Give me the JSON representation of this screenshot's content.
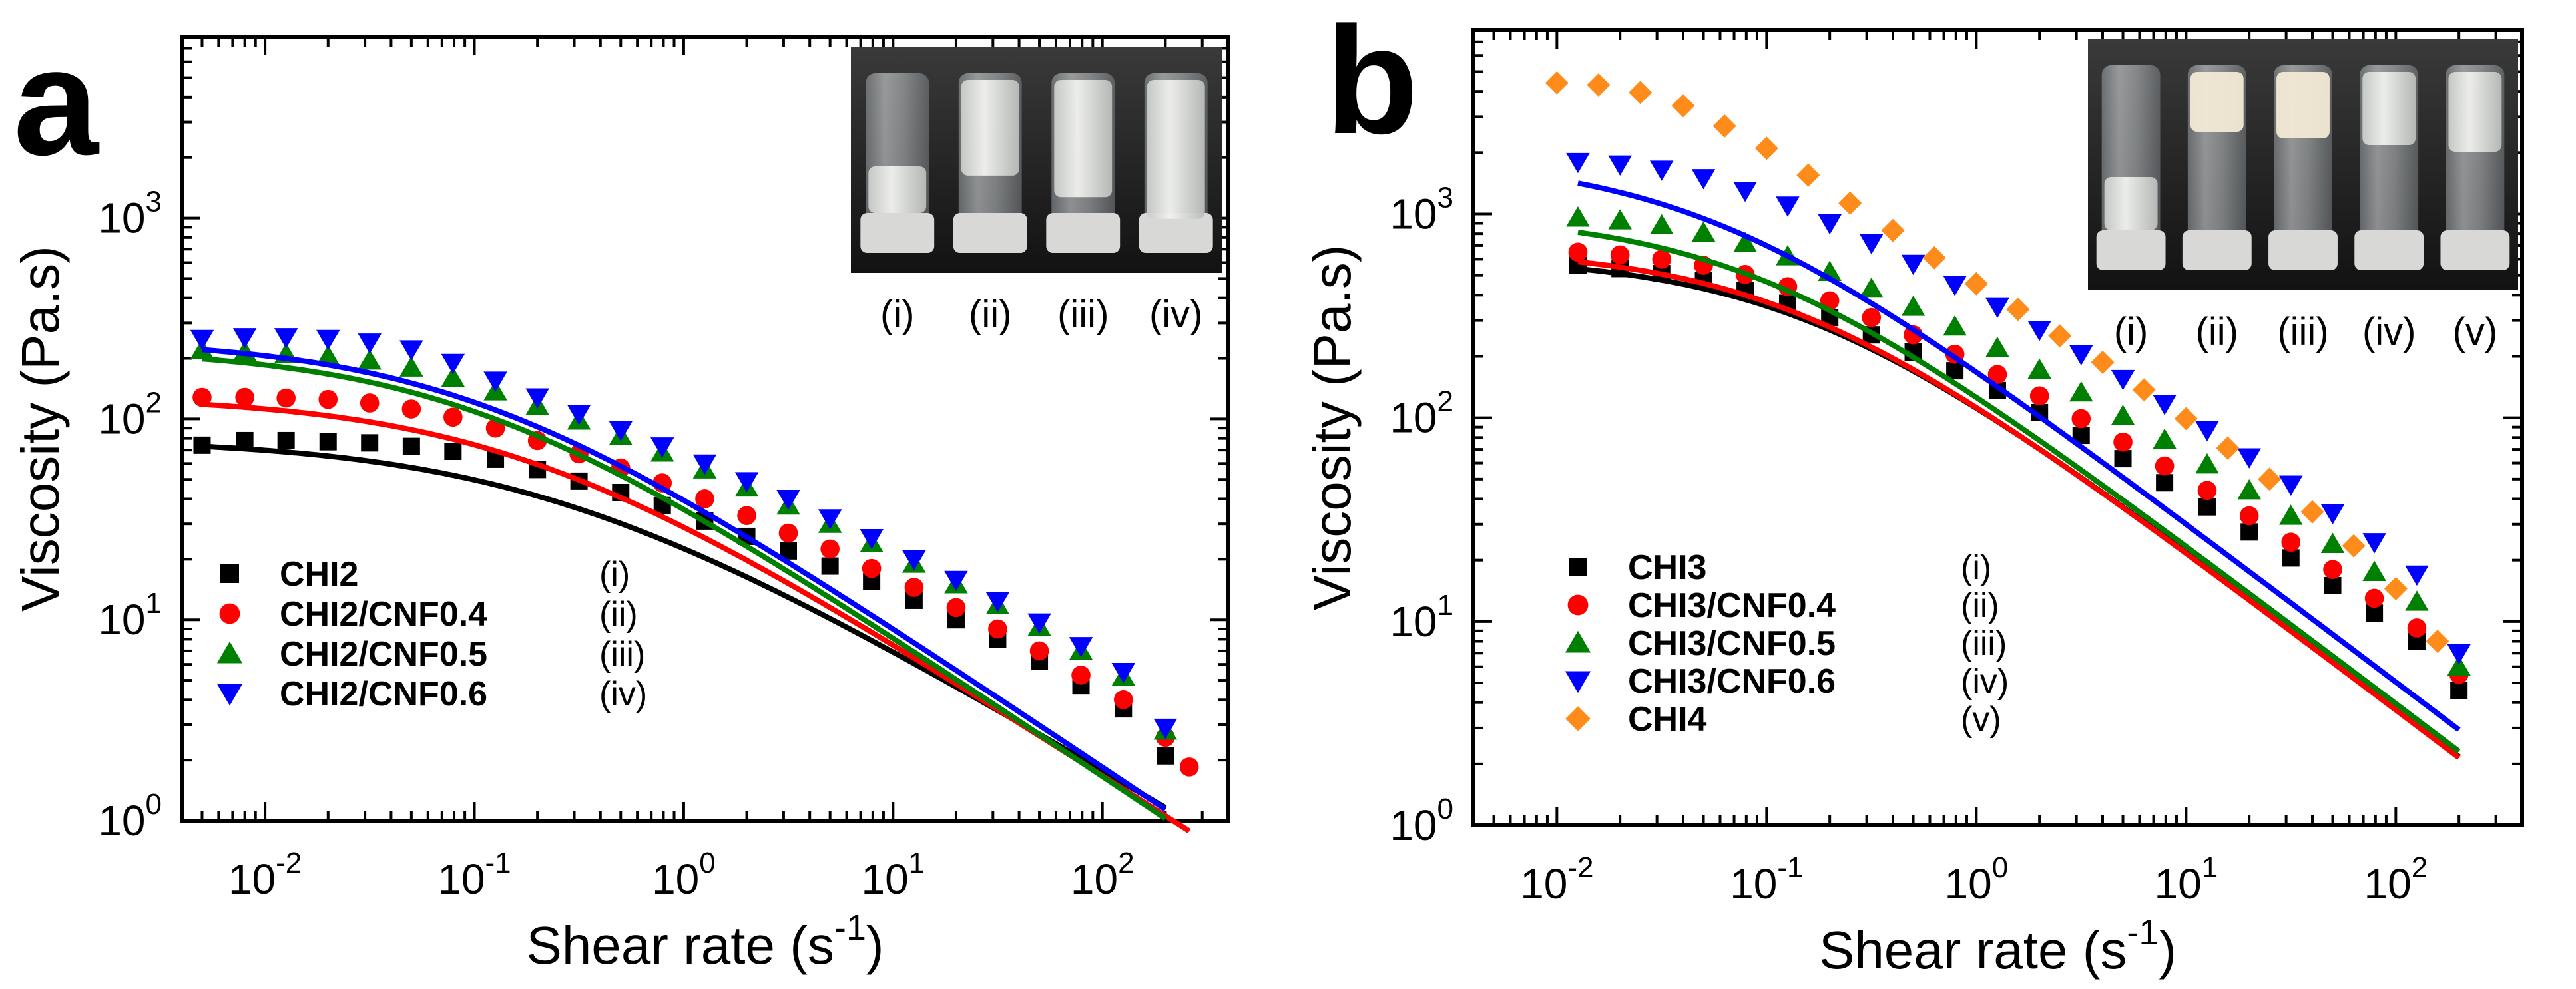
{
  "chart_data": [
    {
      "panel_label": "a",
      "type": "scatter",
      "xscale": "log",
      "yscale": "log",
      "xlim": [
        0.004,
        400
      ],
      "ylim": [
        1,
        8000
      ],
      "xlabel": "Shear rate (s",
      "xlabel_sup": "-1",
      "xlabel_end": ")",
      "ylabel": "Viscosity (Pa.s)",
      "x_ticks": [
        {
          "base": "10",
          "exp": "-2",
          "value": 0.01
        },
        {
          "base": "10",
          "exp": "-1",
          "value": 0.1
        },
        {
          "base": "10",
          "exp": "0",
          "value": 1
        },
        {
          "base": "10",
          "exp": "1",
          "value": 10
        },
        {
          "base": "10",
          "exp": "2",
          "value": 100
        }
      ],
      "y_ticks": [
        {
          "base": "10",
          "exp": "0",
          "value": 1
        },
        {
          "base": "10",
          "exp": "1",
          "value": 10
        },
        {
          "base": "10",
          "exp": "2",
          "value": 100
        },
        {
          "base": "10",
          "exp": "3",
          "value": 1000
        }
      ],
      "legend_position": "bottom-left",
      "inset": {
        "position": "top-right",
        "labels": [
          "(i)",
          "(ii)",
          "(iii)",
          "(iv)"
        ]
      },
      "series": [
        {
          "name": "CHI2",
          "tag": "(i)",
          "marker": "square",
          "color": "#000000",
          "fit": {
            "eta0": 80,
            "lambda": 4.5,
            "n": 0.38
          },
          "x": [
            0.005,
            0.008,
            0.0126,
            0.02,
            0.0316,
            0.05,
            0.079,
            0.126,
            0.2,
            0.316,
            0.5,
            0.79,
            1.26,
            2.0,
            3.16,
            5.0,
            7.9,
            12.6,
            20,
            31.6,
            50,
            79,
            126,
            200
          ],
          "y": [
            74,
            78,
            78,
            77,
            76,
            73,
            69,
            63,
            56,
            49,
            43,
            37,
            31,
            26,
            22,
            18.5,
            15.5,
            12.5,
            10,
            8,
            6.2,
            4.7,
            3.6,
            2.1
          ]
        },
        {
          "name": "CHI2/CNF0.4",
          "tag": "(ii)",
          "marker": "circle",
          "color": "#ff0000",
          "fit": {
            "eta0": 130,
            "lambda": 6.5,
            "n": 0.33
          },
          "x": [
            0.005,
            0.008,
            0.0126,
            0.02,
            0.0316,
            0.05,
            0.079,
            0.126,
            0.2,
            0.316,
            0.5,
            0.79,
            1.26,
            2.0,
            3.16,
            5.0,
            7.9,
            12.6,
            20,
            31.6,
            50,
            79,
            126,
            200,
            260
          ],
          "y": [
            128,
            128,
            127,
            125,
            120,
            112,
            102,
            90,
            78,
            67,
            57,
            48,
            40,
            33,
            27,
            22.5,
            18,
            14.5,
            11.5,
            9,
            7,
            5.3,
            4,
            2.6,
            1.85
          ]
        },
        {
          "name": "CHI2/CNF0.5",
          "tag": "(iii)",
          "marker": "triangle-up",
          "color": "#008000",
          "fit": {
            "eta0": 225,
            "lambda": 11,
            "n": 0.3
          },
          "x": [
            0.005,
            0.008,
            0.0126,
            0.02,
            0.0316,
            0.05,
            0.079,
            0.126,
            0.2,
            0.316,
            0.5,
            0.79,
            1.26,
            2.0,
            3.16,
            5.0,
            7.9,
            12.6,
            20,
            31.6,
            50,
            79,
            126,
            200
          ],
          "y": [
            220,
            215,
            210,
            205,
            195,
            180,
            160,
            137,
            116,
            98,
            82,
            68,
            56,
            45.5,
            37,
            30,
            24,
            19,
            15,
            11.8,
            9.2,
            7,
            5.2,
            2.8
          ]
        },
        {
          "name": "CHI2/CNF0.6",
          "tag": "(iv)",
          "marker": "triangle-down",
          "color": "#0000ff",
          "fit": {
            "eta0": 250,
            "lambda": 11,
            "n": 0.3
          },
          "x": [
            0.005,
            0.008,
            0.0126,
            0.02,
            0.0316,
            0.05,
            0.079,
            0.126,
            0.2,
            0.316,
            0.5,
            0.79,
            1.26,
            2.0,
            3.16,
            5.0,
            7.9,
            12.6,
            20,
            31.6,
            50,
            79,
            126,
            200
          ],
          "y": [
            250,
            255,
            255,
            250,
            240,
            222,
            190,
            155,
            128,
            106,
            88,
            73,
            60,
            49,
            40,
            32,
            25.5,
            20,
            15.8,
            12.4,
            9.7,
            7.4,
            5.5,
            2.9
          ]
        }
      ]
    },
    {
      "panel_label": "b",
      "type": "scatter",
      "xscale": "log",
      "yscale": "log",
      "xlim": [
        0.004,
        400
      ],
      "ylim": [
        1,
        8000
      ],
      "xlabel": "Shear rate (s",
      "xlabel_sup": "-1",
      "xlabel_end": ")",
      "ylabel": "Viscosity (Pa.s)",
      "x_ticks": [
        {
          "base": "10",
          "exp": "-2",
          "value": 0.01
        },
        {
          "base": "10",
          "exp": "-1",
          "value": 0.1
        },
        {
          "base": "10",
          "exp": "0",
          "value": 1
        },
        {
          "base": "10",
          "exp": "1",
          "value": 10
        },
        {
          "base": "10",
          "exp": "2",
          "value": 100
        }
      ],
      "y_ticks": [
        {
          "base": "10",
          "exp": "0",
          "value": 1
        },
        {
          "base": "10",
          "exp": "1",
          "value": 10
        },
        {
          "base": "10",
          "exp": "2",
          "value": 100
        },
        {
          "base": "10",
          "exp": "3",
          "value": 1000
        }
      ],
      "legend_position": "bottom-left",
      "inset": {
        "position": "top-right",
        "labels": [
          "(i)",
          "(ii)",
          "(iii)",
          "(iv)",
          "(v)"
        ]
      },
      "series": [
        {
          "name": "CHI3",
          "tag": "(i)",
          "marker": "square",
          "color": "#000000",
          "fit": {
            "eta0": 620,
            "lambda": 7,
            "n": 0.22
          },
          "x": [
            0.0126,
            0.02,
            0.0316,
            0.05,
            0.079,
            0.126,
            0.2,
            0.316,
            0.5,
            0.79,
            1.26,
            2.0,
            3.16,
            5.0,
            7.9,
            12.6,
            20,
            31.6,
            50,
            79,
            126,
            200
          ],
          "y": [
            560,
            540,
            510,
            470,
            420,
            365,
            310,
            255,
            210,
            170,
            136,
            106,
            82,
            63,
            48,
            36.5,
            27.5,
            20.5,
            15,
            11,
            8,
            4.6
          ]
        },
        {
          "name": "CHI3/CNF0.4",
          "tag": "(ii)",
          "marker": "circle",
          "color": "#ff0000",
          "fit": {
            "eta0": 680,
            "lambda": 8,
            "n": 0.22
          },
          "x": [
            0.0126,
            0.02,
            0.0316,
            0.05,
            0.079,
            0.126,
            0.2,
            0.316,
            0.5,
            0.79,
            1.26,
            2.0,
            3.16,
            5.0,
            7.9,
            12.6,
            20,
            31.6,
            50,
            79,
            126,
            200
          ],
          "y": [
            650,
            630,
            600,
            560,
            505,
            440,
            375,
            310,
            255,
            205,
            163,
            128,
            99,
            76,
            58,
            44,
            33,
            24.5,
            18,
            13,
            9.3,
            5.5
          ]
        },
        {
          "name": "CHI3/CNF0.5",
          "tag": "(iii)",
          "marker": "triangle-up",
          "color": "#008000",
          "fit": {
            "eta0": 1000,
            "lambda": 12,
            "n": 0.22
          },
          "x": [
            0.0126,
            0.02,
            0.0316,
            0.05,
            0.079,
            0.126,
            0.2,
            0.316,
            0.5,
            0.79,
            1.26,
            2.0,
            3.16,
            5.0,
            7.9,
            12.6,
            20,
            31.6,
            50,
            79,
            126,
            200
          ],
          "y": [
            960,
            930,
            880,
            810,
            720,
            620,
            520,
            430,
            350,
            280,
            220,
            172,
            133,
            102,
            78,
            59,
            44,
            33,
            24,
            17.5,
            12.5,
            6
          ]
        },
        {
          "name": "CHI3/CNF0.6",
          "tag": "(iv)",
          "marker": "triangle-down",
          "color": "#0000ff",
          "fit": {
            "eta0": 1900,
            "lambda": 20,
            "n": 0.22
          },
          "x": [
            0.0126,
            0.02,
            0.0316,
            0.05,
            0.079,
            0.126,
            0.2,
            0.316,
            0.5,
            0.79,
            1.26,
            2.0,
            3.16,
            5.0,
            7.9,
            12.6,
            20,
            31.6,
            50,
            79,
            126,
            200
          ],
          "y": [
            1800,
            1750,
            1650,
            1500,
            1300,
            1100,
            900,
            720,
            570,
            450,
            350,
            270,
            205,
            155,
            117,
            87,
            64,
            47,
            34,
            24.5,
            17,
            7
          ]
        },
        {
          "name": "CHI4",
          "tag": "(v)",
          "marker": "diamond",
          "color": "#ff8c1a",
          "fit": null,
          "x": [
            0.01,
            0.0158,
            0.025,
            0.04,
            0.063,
            0.1,
            0.158,
            0.25,
            0.4,
            0.63,
            1.0,
            1.58,
            2.5,
            4.0,
            6.3,
            10,
            15.8,
            25,
            40,
            63,
            100,
            158
          ],
          "y": [
            4400,
            4300,
            3950,
            3400,
            2700,
            2100,
            1550,
            1130,
            830,
            610,
            455,
            340,
            252,
            187,
            137,
            99,
            71,
            50,
            34.5,
            23.5,
            14.5,
            8
          ]
        }
      ]
    }
  ]
}
